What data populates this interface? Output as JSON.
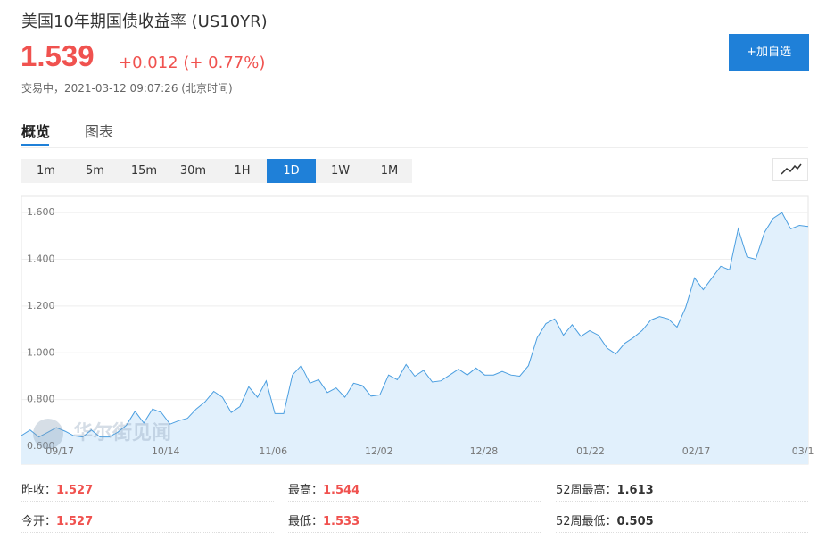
{
  "header": {
    "title": "美国10年期国债收益率 (US10YR)",
    "price": 1.539,
    "change": "+0.012 (+ 0.77%)",
    "status": "交易中，2021-03-12 09:07:26 (北京时间)",
    "button": "+加自选"
  },
  "tabs": [
    "概览",
    "图表"
  ],
  "periods": [
    "1m",
    "5m",
    "15m",
    "30m",
    "1H",
    "1D",
    "1W",
    "1M"
  ],
  "active_period_index": 5,
  "watermark": "华尔街见闻",
  "chart_data": {
    "type": "area",
    "color": "#4a9ee0",
    "fill": "#e1f0fc",
    "grid": true,
    "values": [
      0.646,
      0.67,
      0.64,
      0.66,
      0.68,
      0.665,
      0.645,
      0.64,
      0.67,
      0.64,
      0.64,
      0.66,
      0.69,
      0.75,
      0.7,
      0.76,
      0.745,
      0.695,
      0.71,
      0.72,
      0.76,
      0.79,
      0.835,
      0.81,
      0.745,
      0.77,
      0.855,
      0.81,
      0.88,
      0.74,
      0.74,
      0.905,
      0.945,
      0.87,
      0.885,
      0.83,
      0.85,
      0.81,
      0.87,
      0.86,
      0.815,
      0.82,
      0.905,
      0.885,
      0.95,
      0.9,
      0.925,
      0.875,
      0.88,
      0.905,
      0.93,
      0.905,
      0.935,
      0.905,
      0.905,
      0.92,
      0.905,
      0.9,
      0.945,
      1.065,
      1.125,
      1.145,
      1.075,
      1.12,
      1.07,
      1.095,
      1.075,
      1.02,
      0.995,
      1.04,
      1.065,
      1.095,
      1.14,
      1.155,
      1.145,
      1.11,
      1.195,
      1.32,
      1.27,
      1.32,
      1.37,
      1.355,
      1.53,
      1.41,
      1.4,
      1.515,
      1.575,
      1.6,
      1.53,
      1.545,
      1.54
    ],
    "xlim": [
      0,
      90
    ],
    "xticks": [
      {
        "value": 4.4,
        "label": "09/17"
      },
      {
        "value": 16.5,
        "label": "10/14"
      },
      {
        "value": 28.8,
        "label": "11/06"
      },
      {
        "value": 40.9,
        "label": "12/02"
      },
      {
        "value": 52.9,
        "label": "12/28"
      },
      {
        "value": 65.1,
        "label": "01/22"
      },
      {
        "value": 77.2,
        "label": "02/17"
      },
      {
        "value": 89.4,
        "label": "03/1"
      }
    ],
    "ylim": [
      0.524,
      1.669
    ],
    "yticks": [
      {
        "value": 0.6,
        "label": "0.600"
      },
      {
        "value": 0.8,
        "label": "0.800"
      },
      {
        "value": 1.0,
        "label": "1.000"
      },
      {
        "value": 1.2,
        "label": "1.200"
      },
      {
        "value": 1.4,
        "label": "1.400"
      },
      {
        "value": 1.6,
        "label": "1.600"
      }
    ]
  },
  "stats": [
    {
      "label": "昨收：",
      "value": 1.527
    },
    {
      "label": "最高：",
      "value": 1.544
    },
    {
      "label": "52周最高：",
      "value": 1.613
    },
    {
      "label": "今开：",
      "value": 1.527
    },
    {
      "label": "最低：",
      "value": 1.533
    },
    {
      "label": "52周最低：",
      "value": 0.505
    }
  ]
}
